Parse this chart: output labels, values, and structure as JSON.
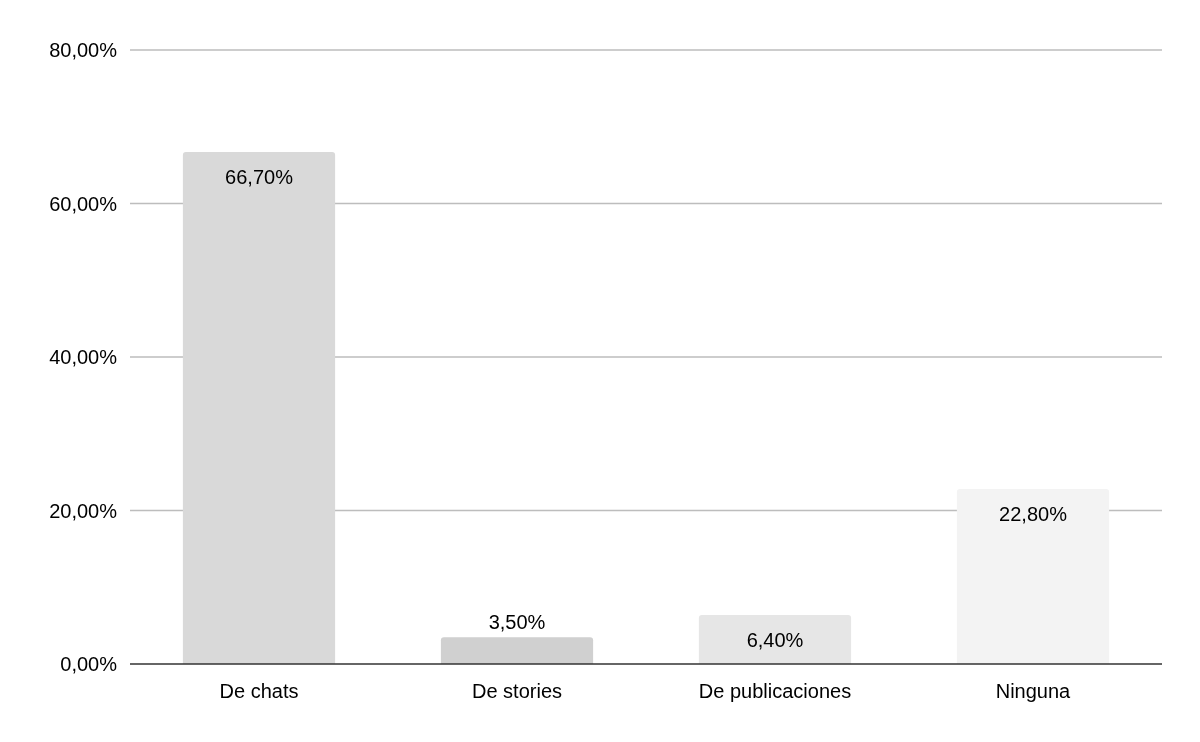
{
  "chart_data": {
    "type": "bar",
    "categories": [
      "De chats",
      "De stories",
      "De publicaciones",
      "Ninguna"
    ],
    "values": [
      66.7,
      3.5,
      6.4,
      22.8
    ],
    "colors": [
      "#d9d9d9",
      "#d0d0d0",
      "#e6e6e6",
      "#f3f3f3"
    ],
    "value_labels": [
      "66,70%",
      "3,50%",
      "6,40%",
      "22,80%"
    ],
    "ylim": [
      0,
      80
    ],
    "yticks": [
      {
        "value": 0,
        "label": "0,00%"
      },
      {
        "value": 20,
        "label": "20,00%"
      },
      {
        "value": 40,
        "label": "40,00%"
      },
      {
        "value": 60,
        "label": "60,00%"
      },
      {
        "value": 80,
        "label": "80,00%"
      }
    ],
    "grid": "y"
  }
}
